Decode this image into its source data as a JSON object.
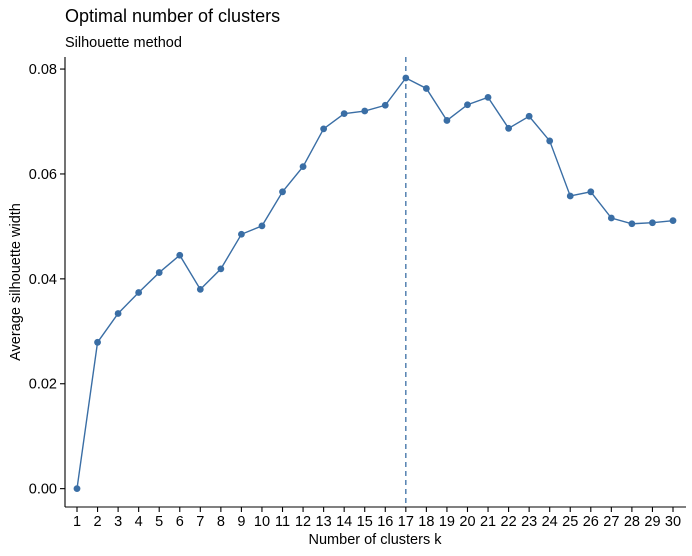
{
  "chart_data": {
    "type": "line",
    "title": "Optimal number of clusters",
    "subtitle": "Silhouette method",
    "xlabel": "Number of clusters k",
    "ylabel": "Average silhouette width",
    "categories": [
      "1",
      "2",
      "3",
      "4",
      "5",
      "6",
      "7",
      "8",
      "9",
      "10",
      "11",
      "12",
      "13",
      "14",
      "15",
      "16",
      "17",
      "18",
      "19",
      "20",
      "21",
      "22",
      "23",
      "24",
      "25",
      "26",
      "27",
      "28",
      "29",
      "30"
    ],
    "values": [
      0.0,
      0.0279,
      0.0334,
      0.0374,
      0.0412,
      0.0445,
      0.038,
      0.0419,
      0.0485,
      0.0501,
      0.0566,
      0.0614,
      0.0686,
      0.0715,
      0.072,
      0.0731,
      0.0783,
      0.0763,
      0.0702,
      0.0732,
      0.0746,
      0.0687,
      0.071,
      0.0663,
      0.0558,
      0.0566,
      0.0516,
      0.0505,
      0.0507,
      0.0511
    ],
    "ylim": [
      -0.0035,
      0.0823
    ],
    "yticks": [
      "0.00",
      "0.02",
      "0.04",
      "0.06",
      "0.08"
    ],
    "ytick_values": [
      0.0,
      0.02,
      0.04,
      0.06,
      0.08
    ],
    "optimal_k": 17,
    "grid": false,
    "legend": "none",
    "colors": {
      "series": "#3a6ea5",
      "axis": "#000000"
    }
  }
}
